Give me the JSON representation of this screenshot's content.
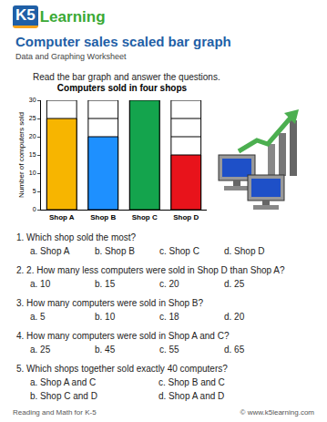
{
  "header": {
    "logo_mark": "K5",
    "logo_text": "Learning",
    "title": "Computer sales scaled bar graph",
    "subtitle": "Data and Graphing Worksheet",
    "instruction": "Read the bar graph and answer the questions."
  },
  "chart_data": {
    "type": "bar",
    "title": "Computers sold in four shops",
    "ylabel": "Number of computers sold",
    "categories": [
      "Shop A",
      "Shop B",
      "Shop C",
      "Shop D"
    ],
    "values": [
      25,
      20,
      30,
      15
    ],
    "colors": [
      "#f7b500",
      "#1e90ff",
      "#14a44d",
      "#e8131b"
    ],
    "ylim": [
      0,
      30
    ],
    "yticks": [
      0,
      5,
      10,
      15,
      20,
      25,
      30
    ],
    "grid": true
  },
  "questions": [
    {
      "text": "1. Which shop sold the most?",
      "options": [
        "a. Shop A",
        "b. Shop B",
        "c. Shop C",
        "d. Shop D"
      ]
    },
    {
      "text": "2. 2. How many less computers were sold in Shop D than Shop A?",
      "options": [
        "a. 10",
        "b. 15",
        "c. 20",
        "d. 25"
      ]
    },
    {
      "text": "3. How many computers were sold in Shop B?",
      "options": [
        "a. 5",
        "b. 10",
        "c. 18",
        "d. 20"
      ]
    },
    {
      "text": "4. How many computers were sold in Shop A and C?",
      "options": [
        "a. 25",
        "b. 45",
        "c. 55",
        "d. 65"
      ]
    },
    {
      "text": "5. Which shops together sold exactly 40 computers?",
      "options": [
        "a. Shop A and C",
        "b. Shop C and D",
        "c. Shop B and C",
        "d. Shop A and D"
      ]
    }
  ],
  "footer": {
    "left": "Reading and Math for K-5",
    "right": "© www.k5learning.com"
  }
}
